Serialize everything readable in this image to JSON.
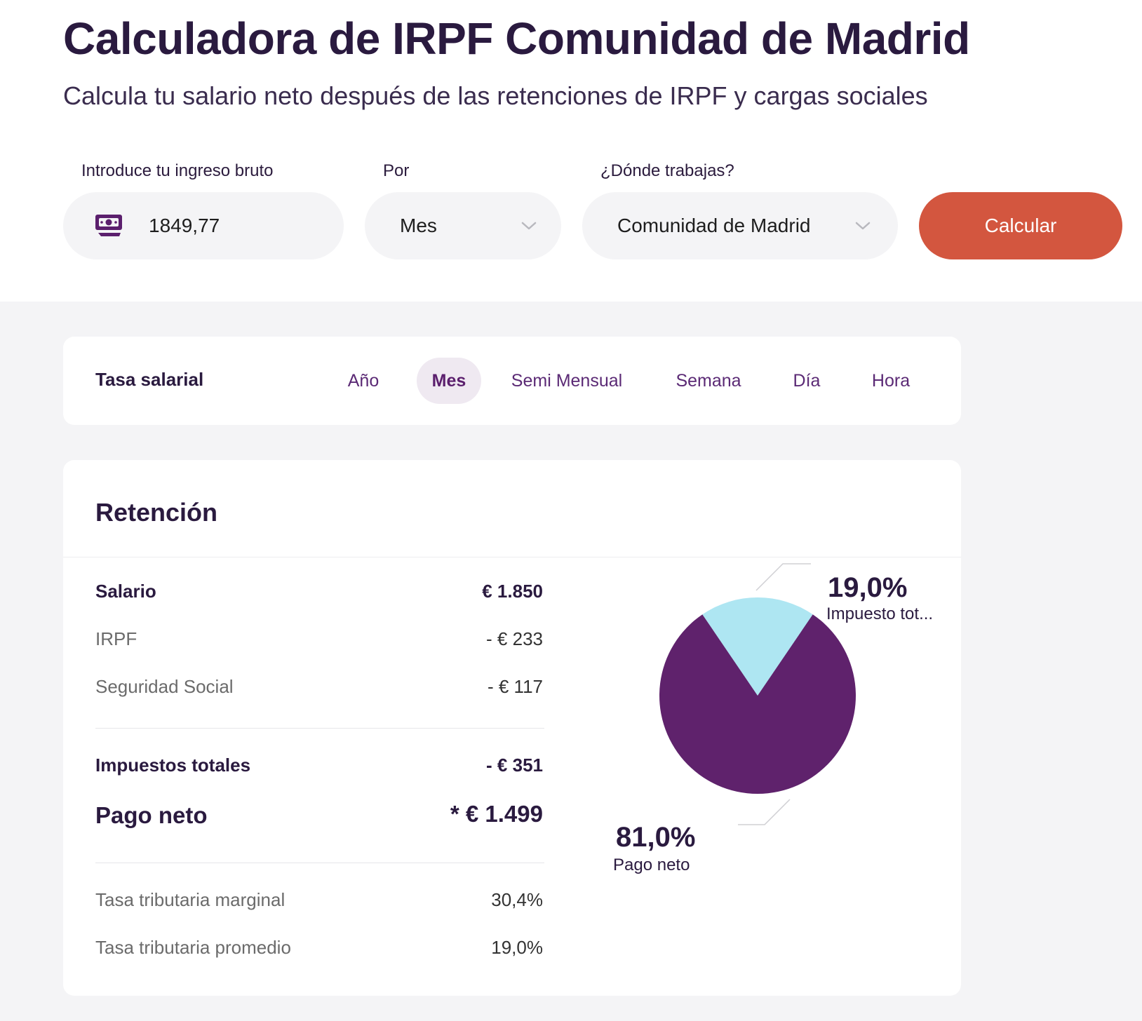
{
  "header": {
    "title": "Calculadora de IRPF Comunidad de Madrid",
    "subtitle": "Calcula tu salario neto después de las retenciones de IRPF y cargas sociales"
  },
  "form": {
    "income_label": "Introduce tu ingreso bruto",
    "income_value": "1849,77",
    "period_label": "Por",
    "period_value": "Mes",
    "region_label": "¿Dónde trabajas?",
    "region_value": "Comunidad de Madrid",
    "submit_label": "Calcular"
  },
  "rate": {
    "title": "Tasa salarial",
    "tabs": [
      "Año",
      "Mes",
      "Semi Mensual",
      "Semana",
      "Día",
      "Hora"
    ],
    "active_tab": "Mes"
  },
  "retention": {
    "title": "Retención",
    "salary_label": "Salario",
    "salary_value": "€ 1.850",
    "irpf_label": "IRPF",
    "irpf_value": "- € 233",
    "ss_label": "Seguridad Social",
    "ss_value": "- € 117",
    "total_tax_label": "Impuestos totales",
    "total_tax_value": "- € 351",
    "net_label": "Pago neto",
    "net_value": "* € 1.499",
    "marginal_label": "Tasa tributaria marginal",
    "marginal_value": "30,4%",
    "average_label": "Tasa tributaria promedio",
    "average_value": "19,0%"
  },
  "chart_data": {
    "type": "pie",
    "slices": [
      {
        "label": "Impuesto tot...",
        "value": 19.0,
        "display": "19,0%",
        "color": "#aee6f2"
      },
      {
        "label": "Pago neto",
        "value": 81.0,
        "display": "81,0%",
        "color": "#5f226c"
      }
    ]
  },
  "colors": {
    "accent": "#d3563f",
    "purple": "#5f226c",
    "light_blue": "#aee6f2"
  }
}
